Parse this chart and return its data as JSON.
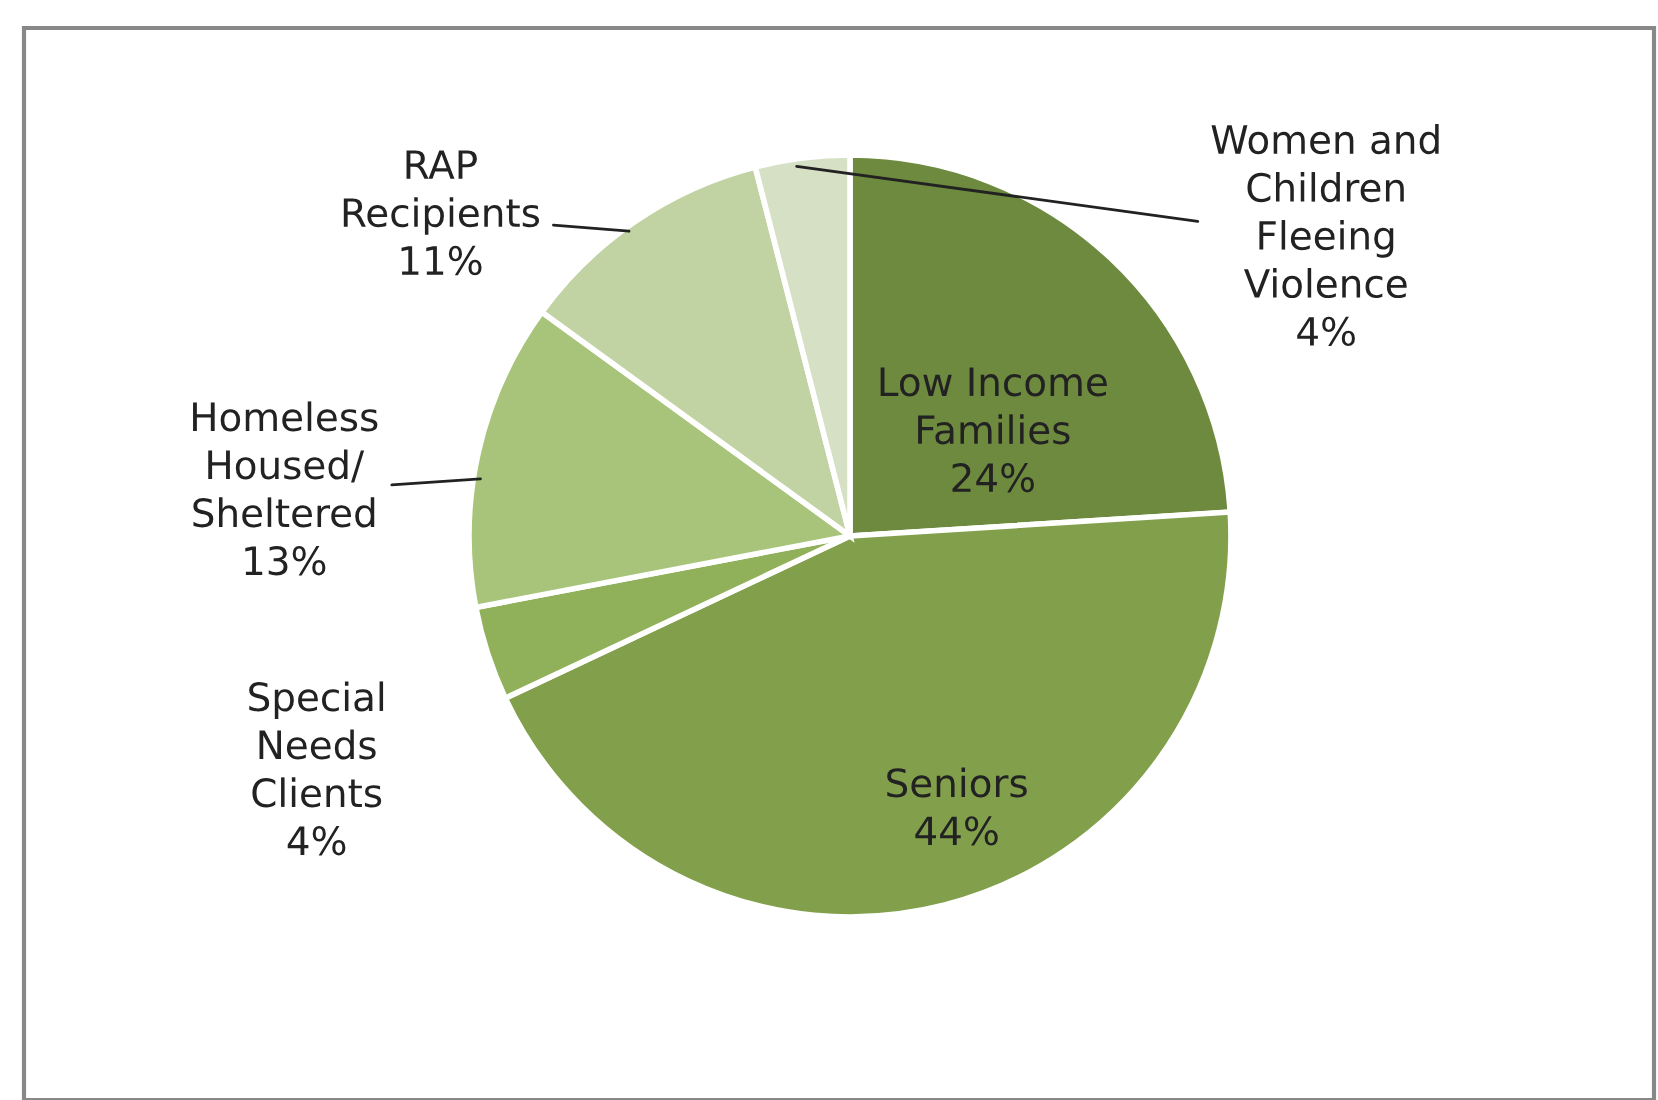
{
  "chart_data": {
    "type": "pie",
    "categories": [
      "Low Income\nFamilies",
      "Seniors",
      "Special\nNeeds\nClients",
      "Homeless\nHoused/\nSheltered",
      "RAP\nRecipients",
      "Women and\nChildren\nFleeing\nViolence"
    ],
    "values": [
      24,
      44,
      4,
      13,
      11,
      4
    ],
    "colors": [
      "#6e8a3e",
      "#82a04c",
      "#90b05a",
      "#a8c47b",
      "#c2d3a3",
      "#d6e0c5"
    ],
    "value_labels": [
      "24%",
      "44%",
      "4%",
      "13%",
      "11%",
      "4%"
    ],
    "legend": false
  }
}
